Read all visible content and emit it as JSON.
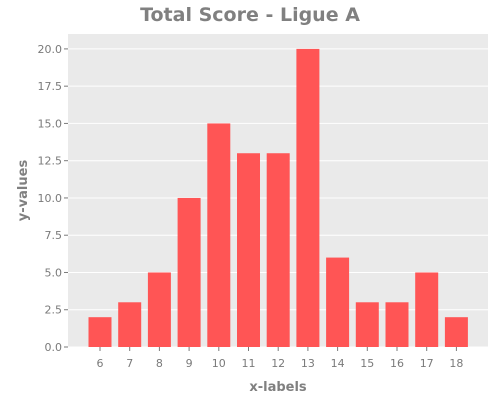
{
  "chart_data": {
    "type": "bar",
    "title": "Total Score - Ligue A",
    "xlabel": "x-labels",
    "ylabel": "y-values",
    "categories": [
      "6",
      "7",
      "8",
      "9",
      "10",
      "11",
      "12",
      "13",
      "14",
      "15",
      "16",
      "17",
      "18"
    ],
    "values": [
      2,
      3,
      5,
      10,
      15,
      13,
      13,
      20,
      6,
      3,
      3,
      5,
      2
    ],
    "ylim": [
      0,
      21.0
    ],
    "yticks": [
      "0.0",
      "2.5",
      "5.0",
      "7.5",
      "10.0",
      "12.5",
      "15.0",
      "17.5",
      "20.0"
    ],
    "grid": true,
    "colors": {
      "bar": "#ff5555",
      "background": "#eaeaea",
      "grid": "#ffffff",
      "text": "#808080"
    }
  }
}
